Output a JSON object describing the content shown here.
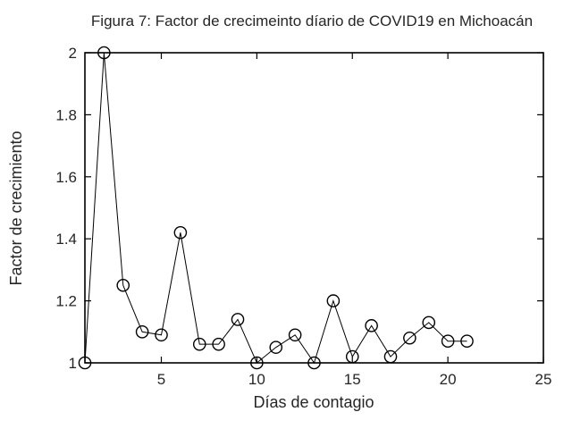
{
  "figure": {
    "background": "#ffffff",
    "text_color": "#262626"
  },
  "chart_data": {
    "type": "line",
    "title": "Figura 7: Factor de crecimeinto díario de COVID19 en Michoacán",
    "xlabel": "Días de contagio",
    "ylabel": "Factor de crecimiento",
    "x": [
      1,
      2,
      3,
      4,
      5,
      6,
      7,
      8,
      9,
      10,
      11,
      12,
      13,
      14,
      15,
      16,
      17,
      18,
      19,
      20,
      21
    ],
    "y": [
      1.0,
      2.0,
      1.25,
      1.1,
      1.09,
      1.42,
      1.06,
      1.06,
      1.14,
      1.0,
      1.05,
      1.09,
      1.0,
      1.2,
      1.02,
      1.12,
      1.02,
      1.08,
      1.13,
      1.07,
      1.07
    ],
    "xlim": [
      1,
      25
    ],
    "ylim": [
      1,
      2
    ],
    "xticks": [
      5,
      10,
      15,
      20,
      25
    ],
    "yticks": [
      1,
      1.2,
      1.4,
      1.6,
      1.8,
      2
    ],
    "legend_position": "none",
    "grid": false,
    "marker": "open-circle",
    "line_color": "#000000",
    "marker_color": "#000000",
    "frame": "box-with-mirrored-ticks"
  }
}
